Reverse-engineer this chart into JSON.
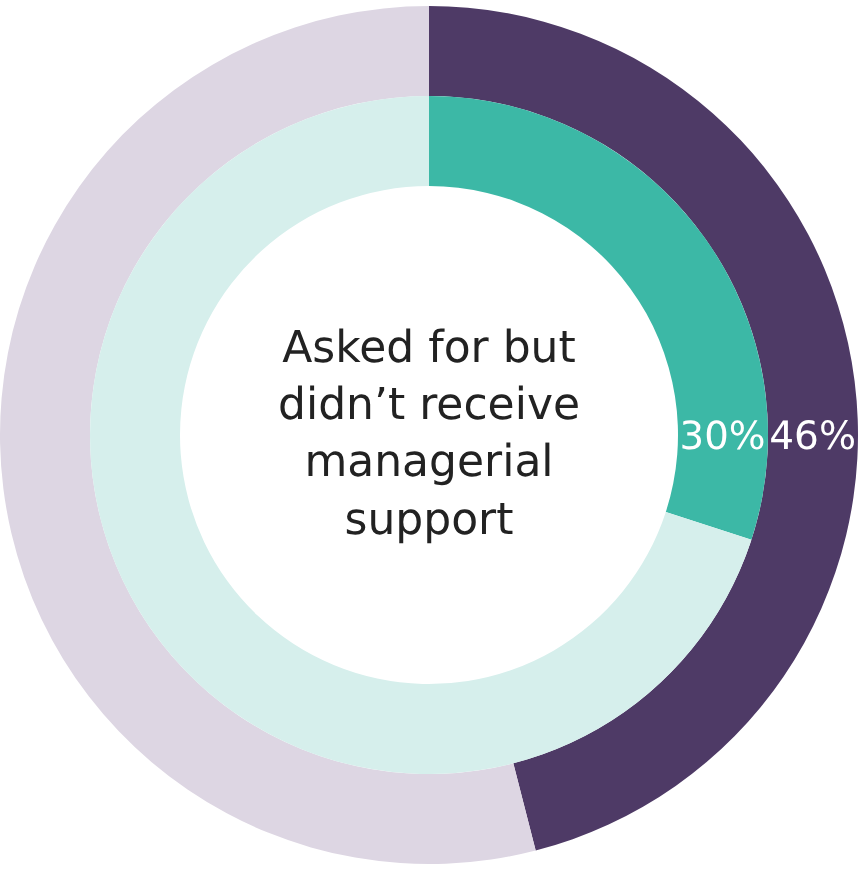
{
  "chart_data": {
    "type": "donut",
    "categories": [
      null,
      null
    ],
    "series": [
      {
        "values": [
          46,
          54
        ],
        "colors": [
          "#4e3a66",
          "#ddd6e3"
        ],
        "value_labels": [
          "46%",
          null
        ]
      },
      {
        "values": [
          30,
          70
        ],
        "colors": [
          "#3cb8a6",
          "#d6efec"
        ],
        "value_labels": [
          "30%",
          null
        ]
      }
    ],
    "annotations": [
      "Asked for but\ndidn’t receive\nmanagerial\nsupport"
    ]
  }
}
